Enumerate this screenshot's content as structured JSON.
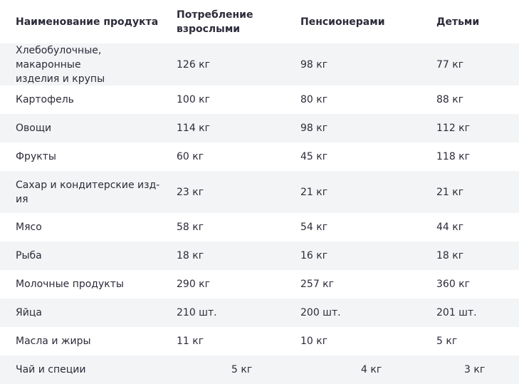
{
  "table": {
    "headers": [
      "Наименование продукта",
      "Потребление взрослыми",
      "Пенсионерами",
      "Детьми"
    ],
    "header_lines": {
      "col1_line1": "Потребление",
      "col1_line2": "взрослыми"
    },
    "rows": [
      {
        "name_line1": "Хлебобулочные, макаронные",
        "name_line2": "изделия и крупы",
        "adults": "126 кг",
        "pensioners": "98 кг",
        "children": "77 кг"
      },
      {
        "name": "Картофель",
        "adults": "100 кг",
        "pensioners": "80 кг",
        "children": "88 кг"
      },
      {
        "name": "Овощи",
        "adults": "114 кг",
        "pensioners": "98 кг",
        "children": "112 кг"
      },
      {
        "name": "Фрукты",
        "adults": "60 кг",
        "pensioners": "45 кг",
        "children": "118 кг"
      },
      {
        "name_line1": "Сахар и кондитерские изд-",
        "name_line2": "ия",
        "adults": "23 кг",
        "pensioners": "21 кг",
        "children": "21 кг"
      },
      {
        "name": "Мясо",
        "adults": "58 кг",
        "pensioners": "54 кг",
        "children": "44 кг"
      },
      {
        "name": "Рыба",
        "adults": "18 кг",
        "pensioners": "16 кг",
        "children": "18 кг"
      },
      {
        "name": "Молочные продукты",
        "adults": "290 кг",
        "pensioners": "257 кг",
        "children": "360 кг"
      },
      {
        "name": "Яйца",
        "adults": "210 шт.",
        "pensioners": "200 шт.",
        "children": "201 шт."
      },
      {
        "name": "Масла и жиры",
        "adults": "11 кг",
        "pensioners": "10 кг",
        "children": "5 кг"
      },
      {
        "name": "Чай и специи",
        "adults": "5 кг",
        "pensioners": "4 кг",
        "children": "3 кг"
      }
    ]
  }
}
